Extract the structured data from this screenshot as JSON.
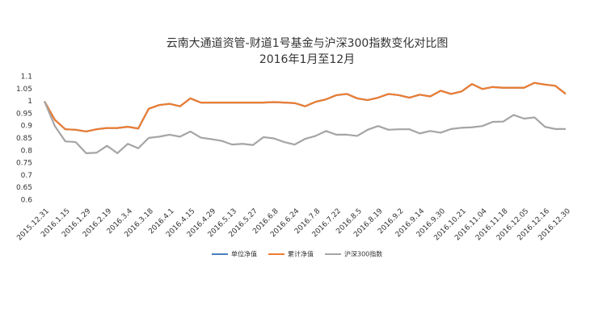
{
  "chart_data": {
    "type": "line",
    "title": "云南大通道资管-财道1号基金与沪深300指数变化对比图",
    "subtitle": "2016年1月至12月",
    "categories": [
      "2015.12.31",
      null,
      "2016.1.15",
      null,
      "2016.1.29",
      null,
      "2016.2.19",
      null,
      "2016.3.4",
      null,
      "2016.3.18",
      null,
      "2016.4.1",
      null,
      "2016.4.15",
      null,
      "2016.4.29",
      null,
      "2016.5.13",
      null,
      "2016.5.27",
      null,
      "2016.6.8",
      null,
      "2016.6.24",
      null,
      "2016.7.8",
      null,
      "2016.7.22",
      null,
      "2016.8.5",
      null,
      "2016.8.19",
      null,
      "2016.9.2",
      null,
      "2016.9.14",
      null,
      "2016.9.30",
      null,
      "2016.10.21",
      null,
      "2016.11.04",
      null,
      "2016.11.18",
      null,
      "2016.12.05",
      null,
      "2016.12.16",
      null,
      "2016.12.30"
    ],
    "series": [
      {
        "name": "单位净值",
        "color": "#4a7ebb",
        "values": [
          1.0,
          0.925,
          0.887,
          0.885,
          0.878,
          0.887,
          0.892,
          0.892,
          0.897,
          0.89,
          0.97,
          0.985,
          0.99,
          0.98,
          1.012,
          0.995,
          0.995,
          0.995,
          0.995,
          0.995,
          0.995,
          0.995,
          0.997,
          0.995,
          0.993,
          0.98,
          0.998,
          1.008,
          1.025,
          1.03,
          1.012,
          1.005,
          1.015,
          1.03,
          1.025,
          1.015,
          1.027,
          1.02,
          1.043,
          1.03,
          1.04,
          1.07,
          1.05,
          1.058,
          1.055,
          1.055,
          1.055,
          1.075,
          1.068,
          1.063,
          1.03
        ]
      },
      {
        "name": "累计净值",
        "color": "#ed7d31",
        "values": [
          1.0,
          0.925,
          0.887,
          0.885,
          0.878,
          0.887,
          0.892,
          0.892,
          0.897,
          0.89,
          0.97,
          0.985,
          0.99,
          0.98,
          1.012,
          0.995,
          0.995,
          0.995,
          0.995,
          0.995,
          0.995,
          0.995,
          0.997,
          0.995,
          0.993,
          0.98,
          0.998,
          1.008,
          1.025,
          1.03,
          1.012,
          1.005,
          1.015,
          1.03,
          1.025,
          1.015,
          1.027,
          1.02,
          1.043,
          1.03,
          1.04,
          1.07,
          1.05,
          1.058,
          1.055,
          1.055,
          1.055,
          1.075,
          1.068,
          1.063,
          1.03
        ]
      },
      {
        "name": "沪深300指数",
        "color": "#a5a5a5",
        "values": [
          1.0,
          0.9,
          0.838,
          0.835,
          0.79,
          0.792,
          0.82,
          0.79,
          0.828,
          0.81,
          0.852,
          0.857,
          0.865,
          0.857,
          0.878,
          0.853,
          0.847,
          0.84,
          0.825,
          0.828,
          0.823,
          0.855,
          0.85,
          0.835,
          0.825,
          0.848,
          0.86,
          0.88,
          0.865,
          0.865,
          0.86,
          0.885,
          0.9,
          0.885,
          0.887,
          0.887,
          0.87,
          0.88,
          0.873,
          0.888,
          0.893,
          0.895,
          0.9,
          0.917,
          0.918,
          0.945,
          0.93,
          0.935,
          0.897,
          0.888,
          0.888
        ]
      }
    ],
    "ylim": [
      0.6,
      1.1
    ],
    "yticks": [
      0.6,
      0.65,
      0.7,
      0.75,
      0.8,
      0.85,
      0.9,
      0.95,
      1,
      1.05,
      1.1
    ],
    "grid": false,
    "legend": "bottom"
  }
}
